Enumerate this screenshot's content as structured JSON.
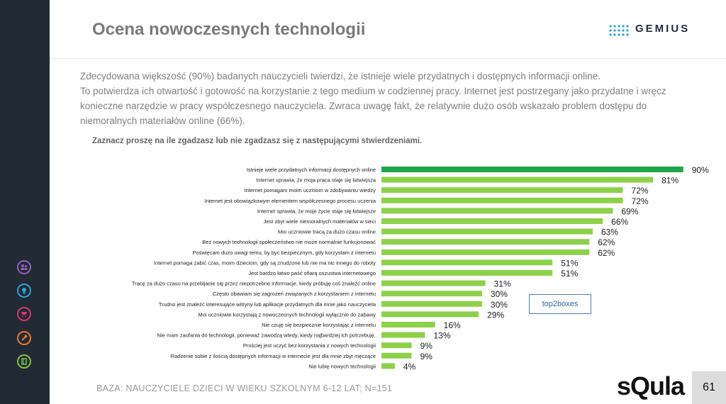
{
  "page": {
    "title": "Ocena nowoczesnych technologii",
    "logo_text": "GEMIUS",
    "intro": [
      "Zdecydowana większość (90%) badanych nauczycieli twierdzi, że istnieje wiele przydatnych i dostępnych informacji online.",
      "To potwierdza ich otwartość i gotowość na korzystanie z tego medium w codziennej pracy. Internet jest postrzegany jako przydatne i wręcz konieczne narzędzie w pracy współczesnego nauczyciela. Zwraca uwagę fakt, że relatywnie dużo osób wskazało problem dostępu do niemoralnych materiałów online (66%)."
    ],
    "question": "Zaznacz proszę na ile zgadzasz lub nie zgadzasz się z następującymi stwierdzeniami.",
    "top2_label": "top2boxes",
    "base_note": "BAZA: NAUCZYCIELE DZIECI W WIEKU SZKOLNYM 6-12 LAT; N=151",
    "brand": "sQula",
    "page_number": "61"
  },
  "sidebar_icons": [
    {
      "name": "people-icon",
      "color": "#8e5fbf"
    },
    {
      "name": "bulb-icon",
      "color": "#2aa3d6"
    },
    {
      "name": "cart-icon",
      "color": "#d6336c"
    },
    {
      "name": "tool-icon",
      "color": "#e8782a"
    },
    {
      "name": "book-icon",
      "color": "#7cc243"
    }
  ],
  "chart_data": {
    "type": "bar",
    "orientation": "horizontal",
    "highlight_color": "#1ea84a",
    "bar_color": "#8dd14a",
    "categories": [
      "Istnieje wiele przydatnych informacji dostępnych online",
      "Internet sprawia, że moja praca staje się łatwiejsza",
      "Internet pomagam moim uczniom w zdobywaniu wiedzy",
      "Internet jest obowiązkowym elementem współczesnego procesu uczenia",
      "Internet sprawia, że moje życie staje się łatwiejsze",
      "Jest zbyt wiele niemoralnych materiałów w sieci",
      "Moi uczniowie tracą za dużo czasu online",
      "Bez nowych technologii społeczeństwo nie może normalnie funkcjonować",
      "Poświęcam dużo uwagi temu, by byc bezpiecznym, gdy korzystam z internetu",
      "Internet pomaga zabić czas, moim dzieciom, gdy są znudzone lub nie ma nic innego do roboty",
      "Jest bardzo łatwo paść ofiarą oszustwa internetowego",
      "Tracę za dużo czasu na przebijanie się przez niepotrzebne informacje, kiedy próbuję coś znaleźć online",
      "Często obawiam się zagrożeń związanych z korzystaniem z internetu",
      "Trudno jest znaleźć interesujące witryny lub aplikacje przydatnych dla mnie jako nauczyciela",
      "Moi uczniowie korzystają z nowoczesnych technologii wyłącznie do zabawy",
      "Nie czuję się bezpiecznie korzystając z internetu",
      "Nie mam zaufania do technologii, ponieważ zawodzą wtedy, kiedy najbardziej ich potrzebuję.",
      "Prościej jest uczyć bez korzystania z nowych technologii",
      "Radzenie sobie z ilością dostępnych informacji w internecie jest dla mnie zbyt męczące",
      "Nie lubię nowych technologii"
    ],
    "values": [
      90,
      81,
      72,
      72,
      69,
      66,
      63,
      62,
      62,
      51,
      51,
      31,
      30,
      30,
      29,
      16,
      13,
      9,
      9,
      4
    ],
    "value_labels": [
      "90%",
      "81%",
      "72%",
      "72%",
      "69%",
      "66%",
      "63%",
      "62%",
      "62%",
      "51%",
      "51%",
      "31%",
      "30%",
      "30%",
      "29%",
      "16%",
      "13%",
      "9%",
      "9%",
      "4%"
    ],
    "xlim": [
      0,
      100
    ]
  }
}
